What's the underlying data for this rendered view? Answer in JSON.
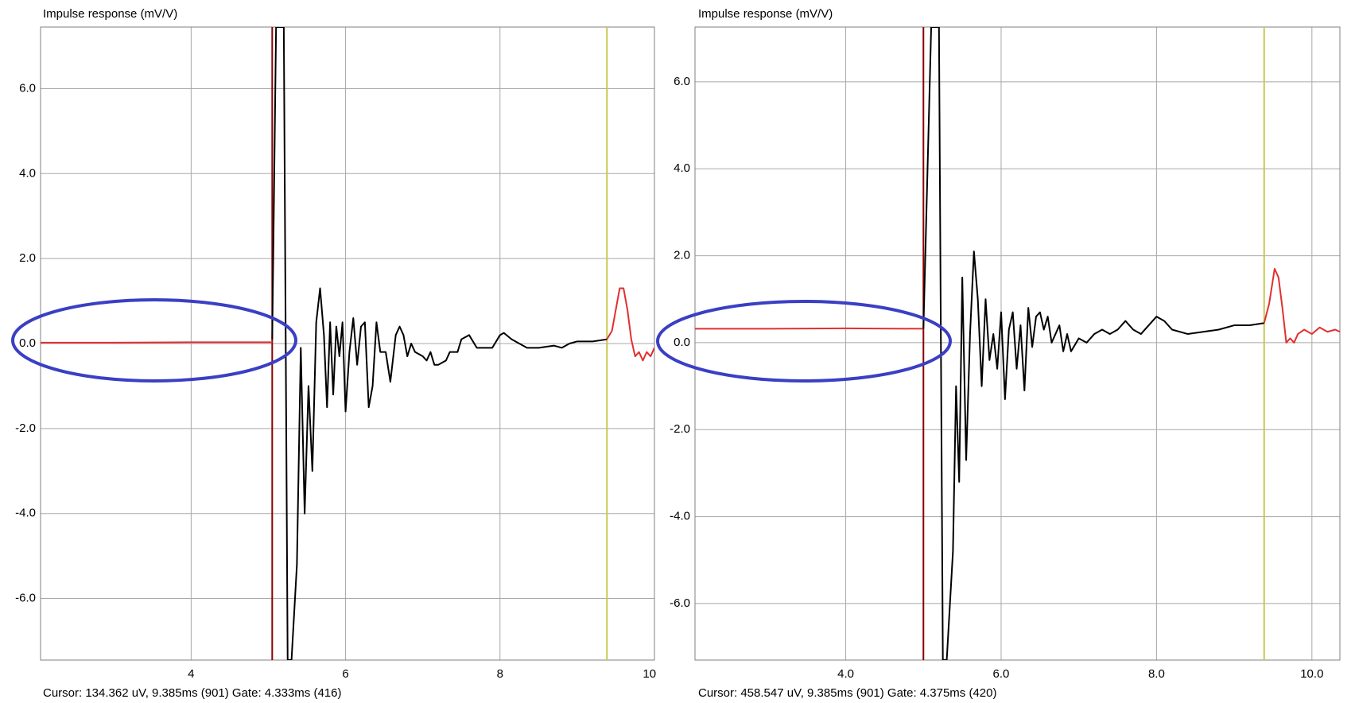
{
  "chart_data": [
    {
      "type": "line",
      "title": "Impulse response (mV/V)",
      "footer": "Cursor: 134.362 uV, 9.385ms (901)  Gate: 4.333ms (416)",
      "xlim": [
        2.05,
        10.0
      ],
      "ylim": [
        -7.45,
        7.45
      ],
      "xticks": [
        4,
        6,
        8,
        {
          "value": 10,
          "label": "10.0"
        }
      ],
      "yticks": [
        {
          "value": -6,
          "label": "-6.0"
        },
        {
          "value": -4,
          "label": "-4.0"
        },
        {
          "value": -2,
          "label": "-2.0"
        },
        {
          "value": 0,
          "label": "0.0"
        },
        {
          "value": 2,
          "label": "2.0"
        },
        {
          "value": 4,
          "label": "4.0"
        },
        {
          "value": 6,
          "label": "6.0"
        }
      ],
      "grid": true,
      "vlines": [
        {
          "x": 5.05,
          "color": "#8b0000"
        },
        {
          "x": 9.385,
          "color": "#c8c850"
        }
      ],
      "series": [
        {
          "color": "#e03030",
          "x": [
            2.05,
            3.0,
            4.0,
            5.05
          ],
          "values": [
            0.02,
            0.02,
            0.03,
            0.03
          ]
        },
        {
          "color": "#000000",
          "x": [
            5.05,
            5.1,
            5.2,
            5.25,
            5.3,
            5.37,
            5.42,
            5.47,
            5.52,
            5.57,
            5.62,
            5.67,
            5.72,
            5.76,
            5.8,
            5.84,
            5.88,
            5.92,
            5.96,
            6.0,
            6.05,
            6.1,
            6.15,
            6.2,
            6.25,
            6.3,
            6.35,
            6.4,
            6.45,
            6.52,
            6.58,
            6.65,
            6.7,
            6.75,
            6.8,
            6.85,
            6.9,
            7.0,
            7.05,
            7.1,
            7.15,
            7.2,
            7.3,
            7.35,
            7.45,
            7.5,
            7.6,
            7.7,
            7.8,
            7.9,
            8.0,
            8.05,
            8.15,
            8.25,
            8.35,
            8.5,
            8.7,
            8.8,
            8.9,
            9.0,
            9.2,
            9.385
          ],
          "values": [
            0.1,
            7.45,
            7.45,
            -7.45,
            -7.45,
            -5.2,
            -0.1,
            -4.0,
            -1.0,
            -3.0,
            0.5,
            1.3,
            0.2,
            -1.5,
            0.5,
            -1.2,
            0.4,
            -0.3,
            0.5,
            -1.6,
            -0.2,
            0.6,
            -0.5,
            0.4,
            0.5,
            -1.5,
            -1.0,
            0.5,
            -0.2,
            -0.2,
            -0.9,
            0.2,
            0.4,
            0.2,
            -0.3,
            0.0,
            -0.2,
            -0.3,
            -0.4,
            -0.2,
            -0.5,
            -0.5,
            -0.4,
            -0.2,
            -0.2,
            0.1,
            0.2,
            -0.1,
            -0.1,
            -0.1,
            0.2,
            0.25,
            0.1,
            0.0,
            -0.1,
            -0.1,
            -0.05,
            -0.1,
            0.0,
            0.05,
            0.05,
            0.1
          ]
        },
        {
          "color": "#e03030",
          "x": [
            9.385,
            9.45,
            9.55,
            9.6,
            9.65,
            9.7,
            9.75,
            9.8,
            9.85,
            9.9,
            9.95,
            10.0
          ],
          "values": [
            0.1,
            0.3,
            1.3,
            1.3,
            0.8,
            0.1,
            -0.3,
            -0.2,
            -0.4,
            -0.2,
            -0.3,
            -0.1
          ]
        }
      ]
    },
    {
      "type": "line",
      "title": "Impulse response (mV/V)",
      "footer": "Cursor: 458.547 uV, 9.385ms (901)  Gate: 4.375ms (420)",
      "xlim": [
        2.06,
        10.36
      ],
      "ylim": [
        -7.3,
        7.26
      ],
      "xticks": [
        {
          "value": 4,
          "label": "4.0"
        },
        {
          "value": 6,
          "label": "6.0"
        },
        {
          "value": 8,
          "label": "8.0"
        },
        {
          "value": 10,
          "label": "10.0"
        }
      ],
      "yticks": [
        {
          "value": -6,
          "label": "-6.0"
        },
        {
          "value": -4,
          "label": "-4.0"
        },
        {
          "value": -2,
          "label": "-2.0"
        },
        {
          "value": 0,
          "label": "0.0"
        },
        {
          "value": 2,
          "label": "2.0"
        },
        {
          "value": 4,
          "label": "4.0"
        },
        {
          "value": 6,
          "label": "6.0"
        }
      ],
      "grid": true,
      "vlines": [
        {
          "x": 5.0,
          "color": "#8b0000"
        },
        {
          "x": 9.385,
          "color": "#c8c850"
        }
      ],
      "series": [
        {
          "color": "#e03030",
          "x": [
            2.06,
            3.0,
            4.0,
            5.0
          ],
          "values": [
            0.32,
            0.32,
            0.33,
            0.32
          ]
        },
        {
          "color": "#000000",
          "x": [
            5.0,
            5.1,
            5.2,
            5.25,
            5.3,
            5.38,
            5.42,
            5.46,
            5.5,
            5.55,
            5.6,
            5.65,
            5.7,
            5.75,
            5.8,
            5.85,
            5.9,
            5.95,
            6.0,
            6.05,
            6.1,
            6.15,
            6.2,
            6.25,
            6.3,
            6.35,
            6.4,
            6.45,
            6.5,
            6.55,
            6.6,
            6.65,
            6.7,
            6.75,
            6.8,
            6.85,
            6.9,
            7.0,
            7.1,
            7.2,
            7.3,
            7.4,
            7.5,
            7.6,
            7.7,
            7.8,
            8.0,
            8.1,
            8.2,
            8.4,
            8.6,
            8.8,
            9.0,
            9.2,
            9.385
          ],
          "values": [
            0.32,
            7.26,
            7.26,
            -7.3,
            -7.3,
            -4.8,
            -1.0,
            -3.2,
            1.5,
            -2.7,
            0.2,
            2.1,
            1.0,
            -1.0,
            1.0,
            -0.4,
            0.2,
            -0.6,
            0.7,
            -1.3,
            0.3,
            0.7,
            -0.6,
            0.4,
            -1.1,
            0.8,
            -0.1,
            0.6,
            0.7,
            0.3,
            0.6,
            0.0,
            0.2,
            0.4,
            -0.2,
            0.2,
            -0.2,
            0.1,
            0.0,
            0.2,
            0.3,
            0.2,
            0.3,
            0.5,
            0.3,
            0.2,
            0.6,
            0.5,
            0.3,
            0.2,
            0.25,
            0.3,
            0.4,
            0.4,
            0.45
          ]
        },
        {
          "color": "#e03030",
          "x": [
            9.385,
            9.45,
            9.52,
            9.57,
            9.62,
            9.67,
            9.72,
            9.77,
            9.82,
            9.9,
            10.0,
            10.1,
            10.2,
            10.3,
            10.36
          ],
          "values": [
            0.45,
            0.9,
            1.7,
            1.5,
            0.8,
            0.0,
            0.1,
            0.0,
            0.2,
            0.3,
            0.2,
            0.35,
            0.25,
            0.3,
            0.25
          ]
        }
      ]
    }
  ]
}
